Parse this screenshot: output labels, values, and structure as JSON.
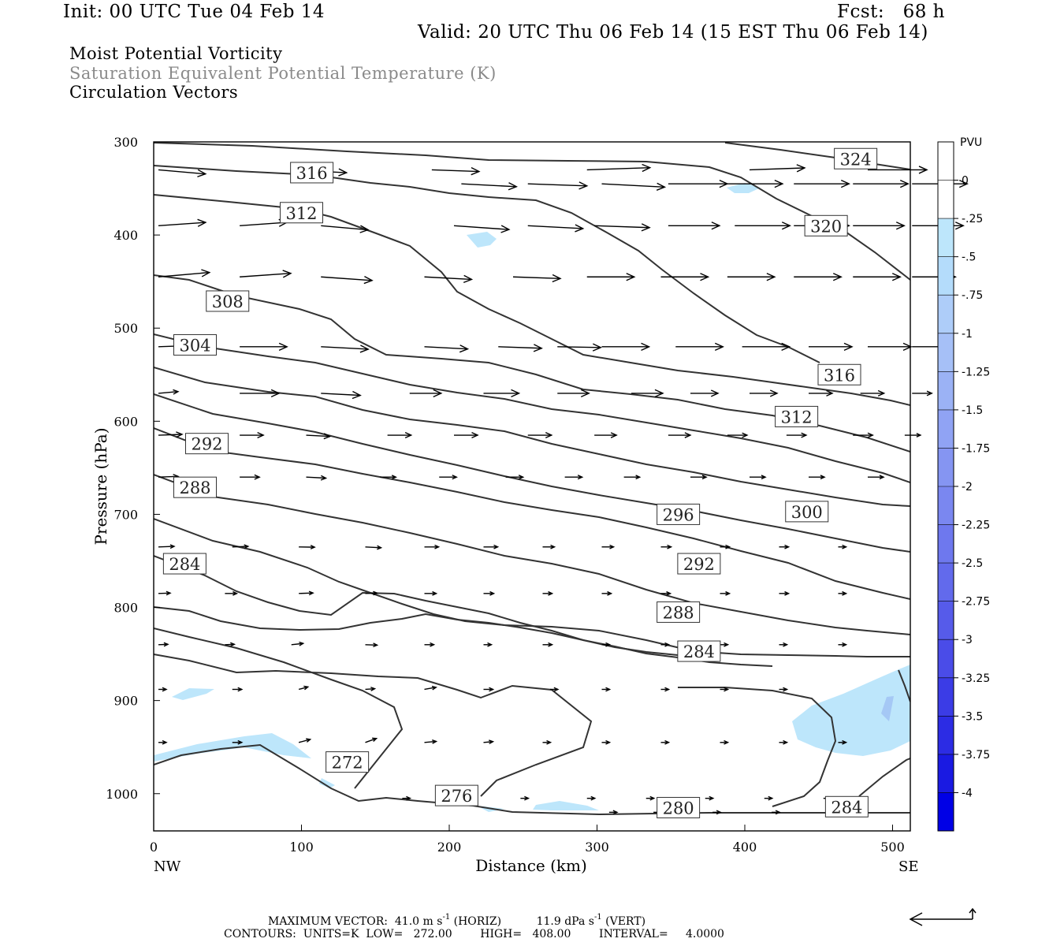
{
  "header": {
    "init": "Init: 00 UTC Tue 04 Feb 14",
    "fcst": "Fcst:   68 h",
    "valid": "Valid: 20 UTC Thu 06 Feb 14 (15 EST Thu 06 Feb 14)"
  },
  "legend_titles": [
    "Moist Potential Vorticity",
    "Saturation Equivalent Potential Temperature (K)",
    "Circulation Vectors"
  ],
  "footer": {
    "max_vector_label": "MAXIMUM VECTOR:",
    "horiz_value": "41.0 m s",
    "horiz_exp": "-1",
    "horiz_tag": "(HORIZ)",
    "vert_value": "11.9 dPa s",
    "vert_exp": "-1",
    "vert_tag": "(VERT)",
    "contours": "CONTOURS:  UNITS=K  LOW=   272.00        HIGH=   408.00        INTERVAL=     4.0000"
  },
  "colors": {
    "contour": "#333333",
    "vector": "#000000",
    "pv_fill": "#bde6fb",
    "pv_fill_dark": "#a5c8f5"
  },
  "chart_data": {
    "type": "cross-section",
    "xlabel": "Distance (km)",
    "ylabel": "Pressure (hPa)",
    "xlim": [
      0,
      512
    ],
    "ylim": [
      1040,
      300
    ],
    "x_ticks": [
      0,
      100,
      200,
      300,
      400,
      500
    ],
    "y_ticks": [
      300,
      400,
      500,
      600,
      700,
      800,
      900,
      1000
    ],
    "endpoints": {
      "left": "NW",
      "right": "SE"
    },
    "colorbar": {
      "units": "PVU",
      "labels": [
        "0",
        "-.25",
        "-.5",
        "-.75",
        "-1",
        "-1.25",
        "-1.5",
        "-1.75",
        "-2",
        "-2.25",
        "-2.5",
        "-2.75",
        "-3",
        "-3.25",
        "-3.5",
        "-3.75",
        "-4"
      ],
      "colors": [
        "#ffffff",
        "#ffffff",
        "#bde6fb",
        "#b4dcfb",
        "#aecdf9",
        "#a6c0f7",
        "#9bb2f5",
        "#90a3f4",
        "#8595f2",
        "#7a87f0",
        "#6e78ee",
        "#626aec",
        "#565bea",
        "#4a4ce8",
        "#3b3ce6",
        "#2c2ce4",
        "#1a1ae2",
        "#0000e6"
      ]
    },
    "contour_labels": [
      {
        "text": "324",
        "x": 475,
        "p": 318
      },
      {
        "text": "316",
        "x": 107,
        "p": 333
      },
      {
        "text": "312",
        "x": 100,
        "p": 376
      },
      {
        "text": "320",
        "x": 455,
        "p": 390
      },
      {
        "text": "308",
        "x": 50,
        "p": 471
      },
      {
        "text": "304",
        "x": 28,
        "p": 518
      },
      {
        "text": "316",
        "x": 464,
        "p": 550
      },
      {
        "text": "312",
        "x": 435,
        "p": 595
      },
      {
        "text": "292",
        "x": 36,
        "p": 624
      },
      {
        "text": "288",
        "x": 28,
        "p": 671
      },
      {
        "text": "296",
        "x": 355,
        "p": 700
      },
      {
        "text": "300",
        "x": 442,
        "p": 697
      },
      {
        "text": "284",
        "x": 21,
        "p": 753
      },
      {
        "text": "292",
        "x": 369,
        "p": 753
      },
      {
        "text": "288",
        "x": 355,
        "p": 805
      },
      {
        "text": "284",
        "x": 369,
        "p": 847
      },
      {
        "text": "272",
        "x": 131,
        "p": 966
      },
      {
        "text": "276",
        "x": 205,
        "p": 1002
      },
      {
        "text": "280",
        "x": 355,
        "p": 1015
      },
      {
        "text": "284",
        "x": 469,
        "p": 1014
      }
    ]
  }
}
